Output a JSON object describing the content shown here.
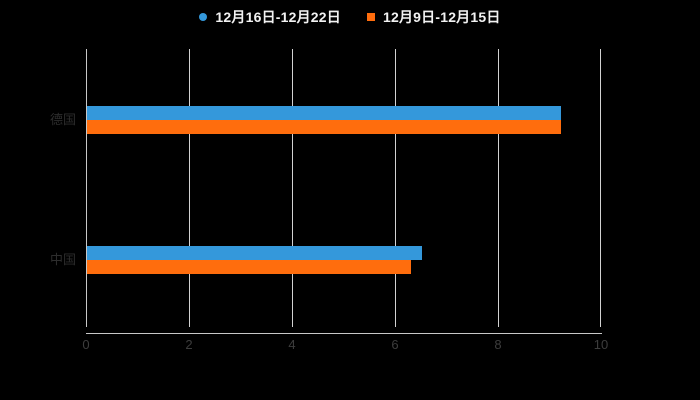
{
  "legend": {
    "items": [
      {
        "label": "12月16日-12月22日",
        "marker": "circle-legend-marker",
        "color": "#3498db"
      },
      {
        "label": "12月9日-12月15日",
        "marker": "square-legend-marker",
        "color": "#ff6d0d"
      }
    ]
  },
  "chart_data": {
    "type": "bar",
    "orientation": "horizontal",
    "title": "",
    "categories": [
      "德国",
      "中国"
    ],
    "series": [
      {
        "name": "12月16日-12月22日",
        "color": "#3498db",
        "values": [
          9.2,
          6.5
        ]
      },
      {
        "name": "12月9日-12月15日",
        "color": "#ff6d0d",
        "values": [
          9.2,
          6.3
        ]
      }
    ],
    "xlim": [
      0,
      10
    ],
    "x_ticks": [
      "0",
      "2",
      "4",
      "6",
      "8",
      "10"
    ],
    "grid": true,
    "legend_position": "top"
  },
  "colors": {
    "background": "#000000",
    "grid_line": "#d2d2d2",
    "axis_line": "#c8c8c8",
    "tick_label": "#3d3d3d",
    "category_label": "#2d2d2d",
    "legend_text": "#f2f2f2"
  }
}
